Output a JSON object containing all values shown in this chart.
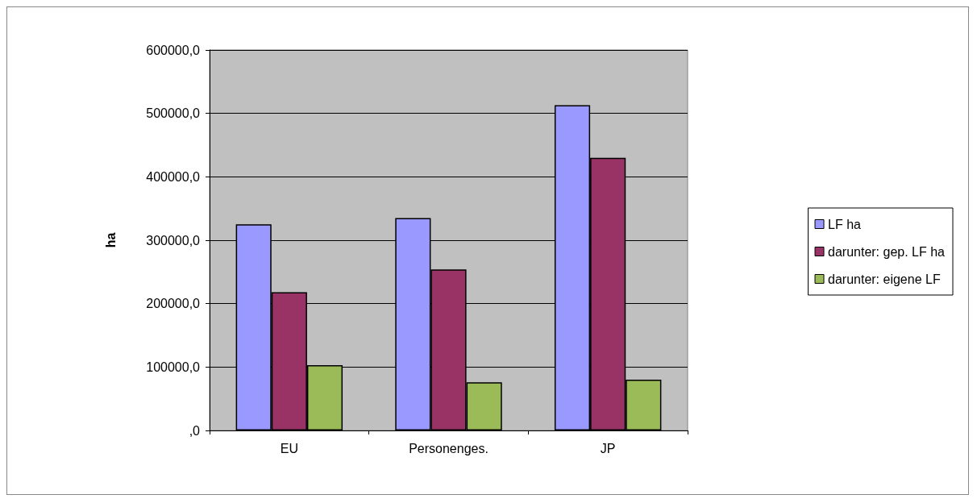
{
  "chart_data": {
    "type": "bar",
    "ylabel": "ha",
    "categories": [
      "EU",
      "Personenges.",
      "JP"
    ],
    "series": [
      {
        "name": "LF ha",
        "color": "#9999ff",
        "values": [
          325000,
          335000,
          513000
        ]
      },
      {
        "name": "darunter: gep. LF ha",
        "color": "#993366",
        "values": [
          218000,
          254000,
          430000
        ]
      },
      {
        "name": "darunter: eigene LF",
        "color": "#9bbb59",
        "values": [
          103000,
          76000,
          80000
        ]
      }
    ],
    "ylim": [
      0,
      600000
    ],
    "yticks": [
      {
        "value": 0,
        "label": ",0"
      },
      {
        "value": 100000,
        "label": "100000,0"
      },
      {
        "value": 200000,
        "label": "200000,0"
      },
      {
        "value": 300000,
        "label": "300000,0"
      },
      {
        "value": 400000,
        "label": "400000,0"
      },
      {
        "value": 500000,
        "label": "500000,0"
      },
      {
        "value": 600000,
        "label": "600000,0"
      }
    ],
    "grid": "y",
    "legend": "right"
  }
}
